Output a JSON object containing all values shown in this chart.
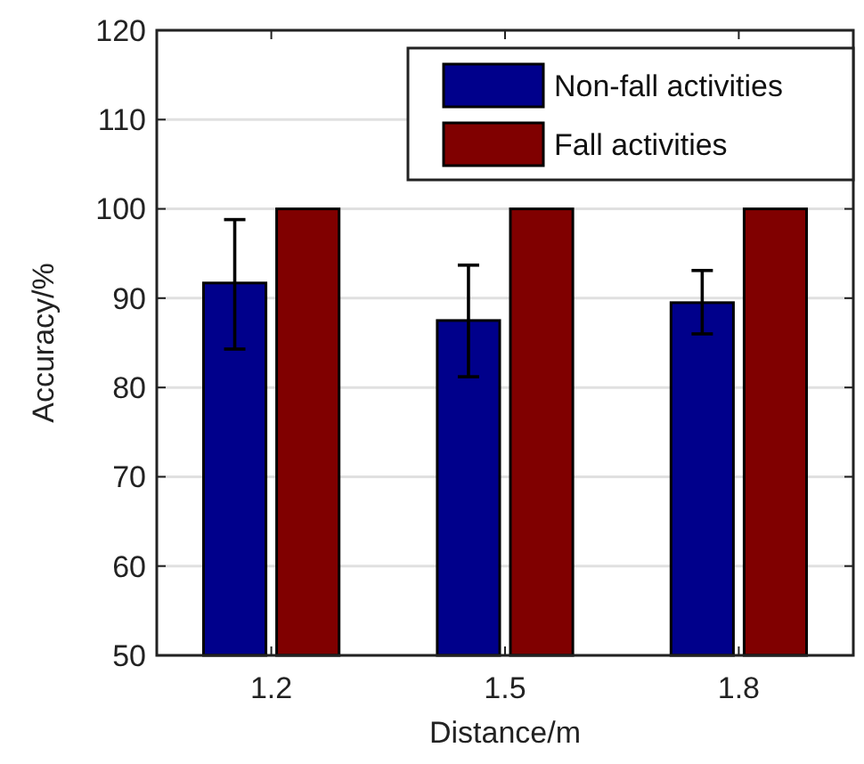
{
  "chart_data": {
    "type": "bar",
    "xlabel": "Distance/m",
    "ylabel": "Accuracy/%",
    "categories": [
      "1.2",
      "1.5",
      "1.8"
    ],
    "series": [
      {
        "name": "Non-fall activities",
        "color": "#00008b",
        "values": [
          91.7,
          87.5,
          89.5
        ],
        "errors": [
          [
            84.3,
            98.8
          ],
          [
            81.2,
            93.7
          ],
          [
            86.0,
            93.1
          ]
        ]
      },
      {
        "name": "Fall activities",
        "color": "#800000",
        "values": [
          100,
          100,
          100
        ]
      }
    ],
    "ylim": [
      50,
      120
    ],
    "yticks": [
      50,
      60,
      70,
      80,
      90,
      100,
      110,
      120
    ],
    "grid": "y",
    "legend": "top right"
  }
}
